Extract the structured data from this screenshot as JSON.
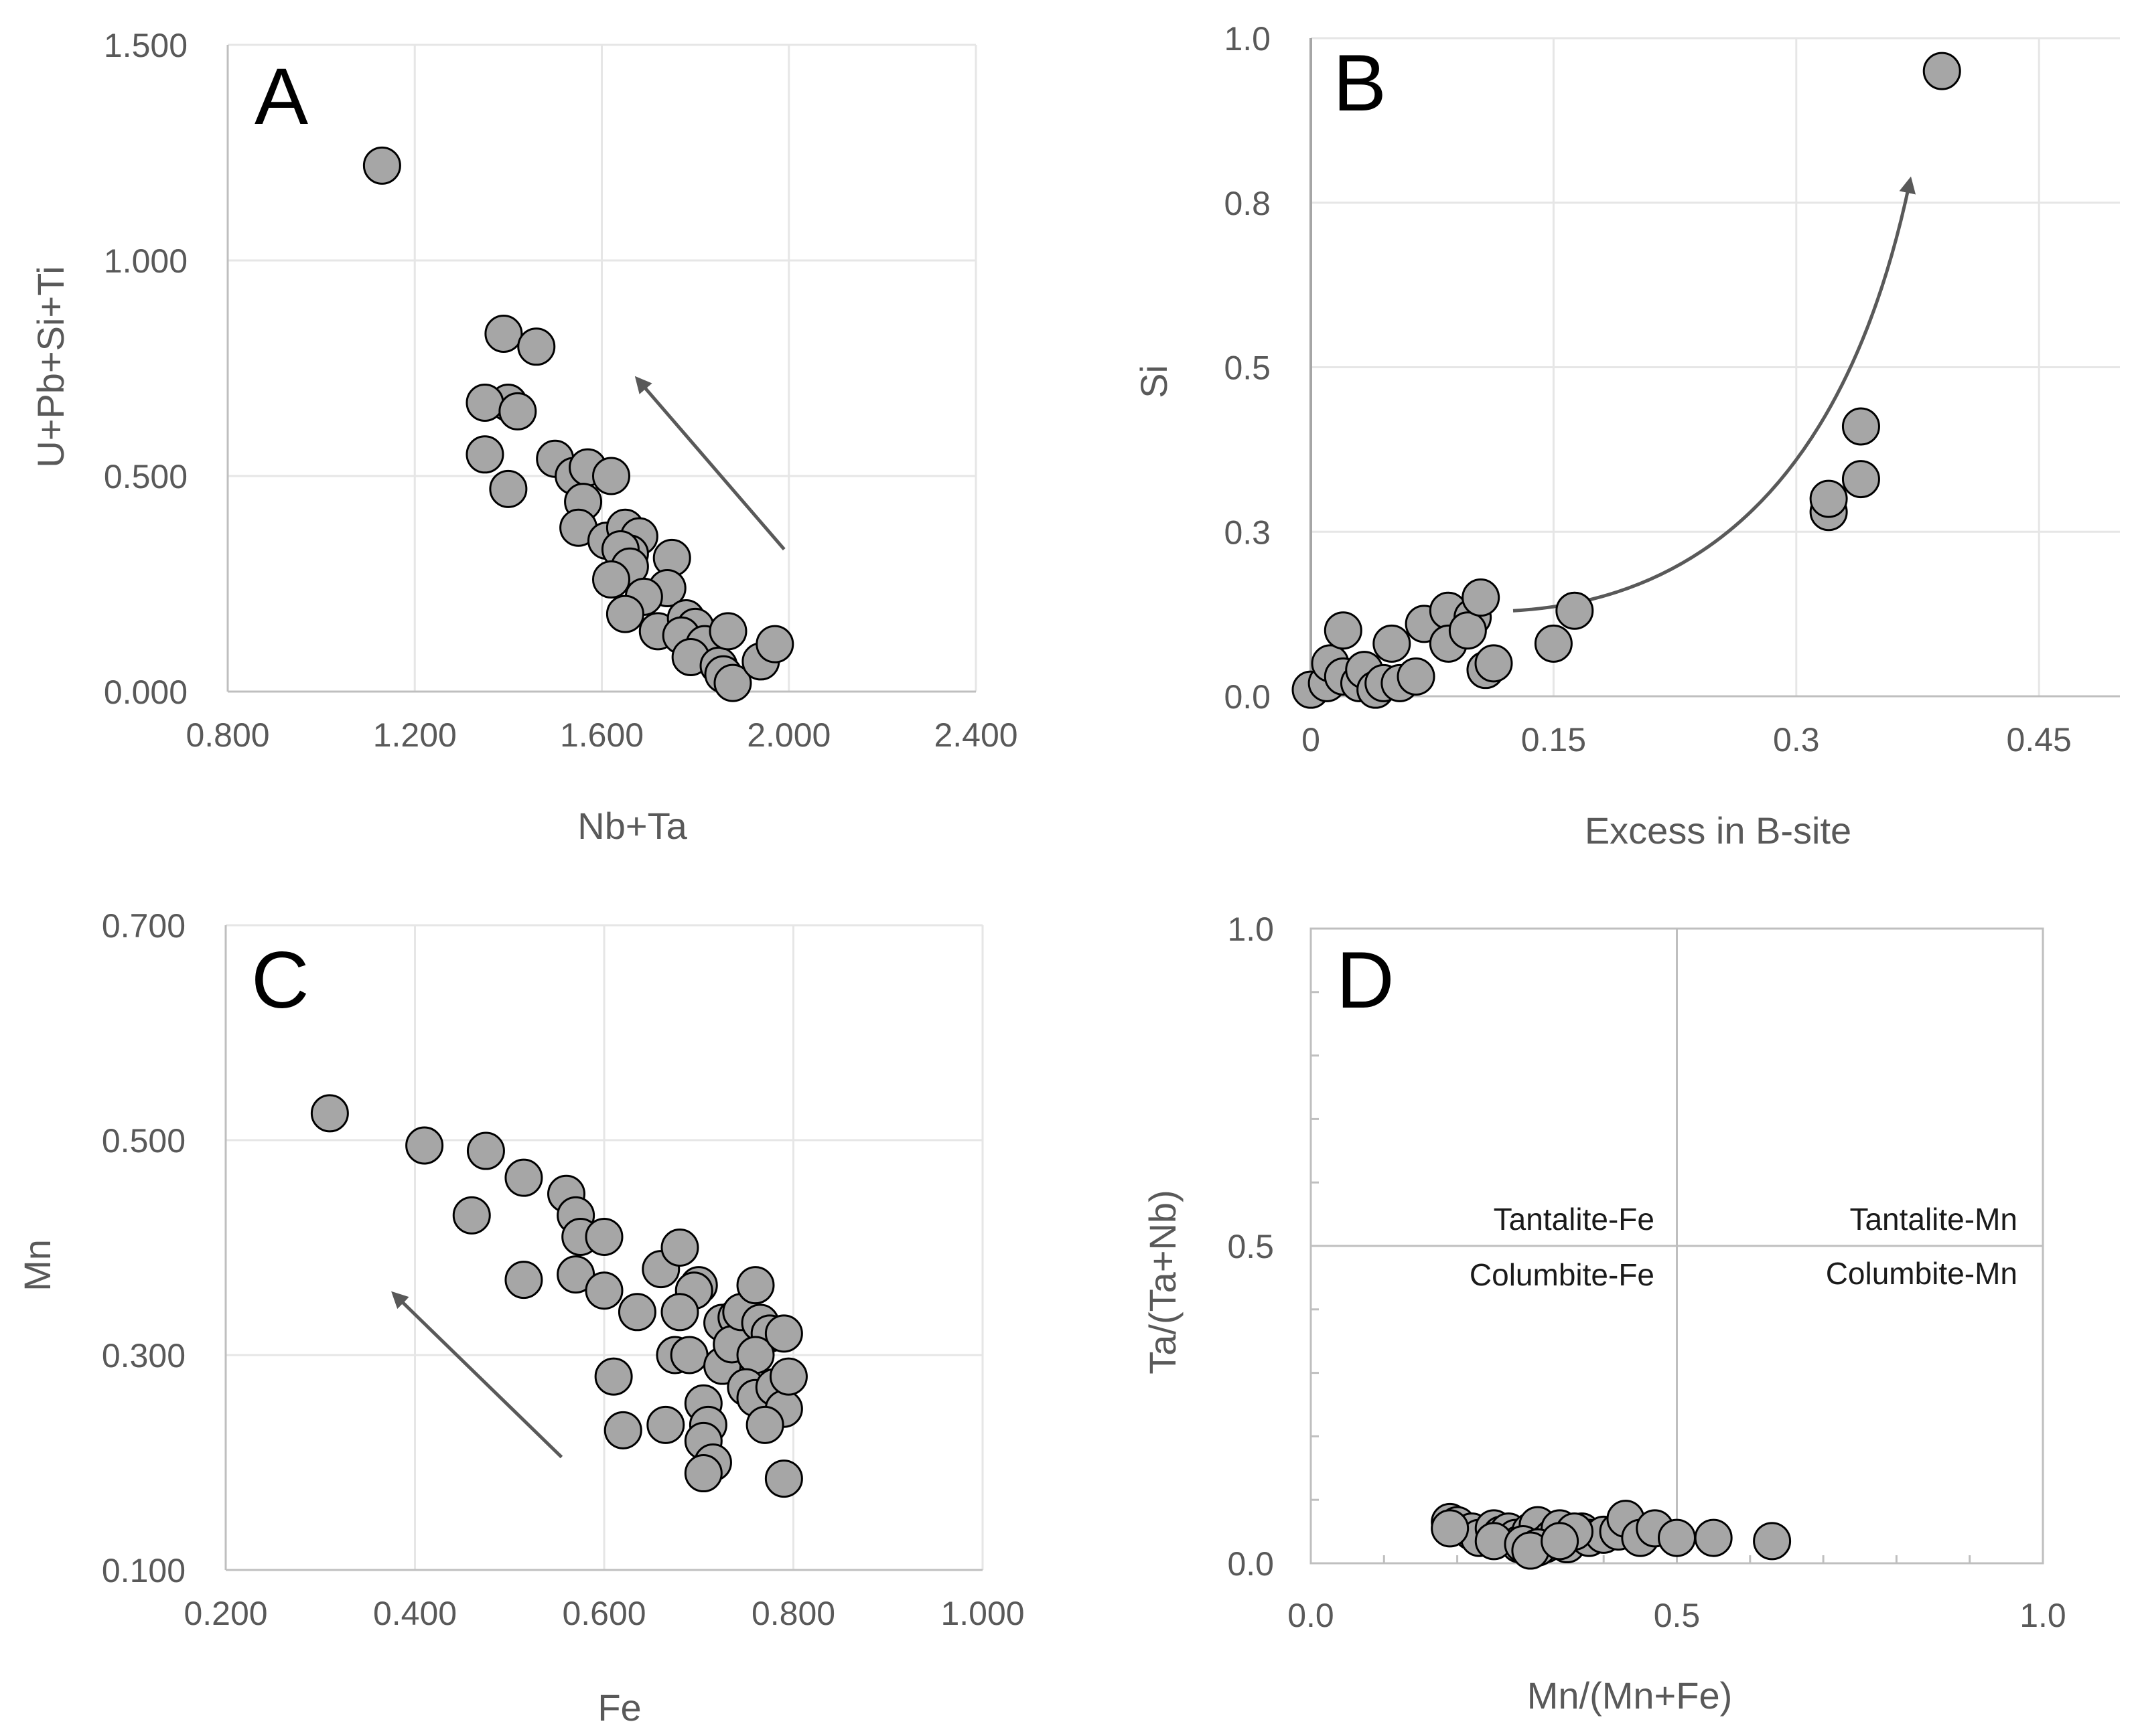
{
  "figure": {
    "colors": {
      "marker_fill": "#a6a6a6",
      "marker_edge": "#000000",
      "grid": "#e6e6e6",
      "axis": "#bfbfbf",
      "arrow": "#595959",
      "text": "#595959"
    }
  },
  "chart_data": [
    {
      "type": "scatter",
      "panel_label": "A",
      "xlabel": "Nb+Ta",
      "ylabel": "U+Pb+Si+Ti",
      "xlim": [
        0.8,
        2.4
      ],
      "ylim": [
        0.0,
        1.5
      ],
      "xticks": [
        0.8,
        1.2,
        1.6,
        2.0,
        2.4
      ],
      "yticks": [
        0.0,
        0.5,
        1.0,
        1.5
      ],
      "xtick_labels": [
        "0.800",
        "1.200",
        "1.600",
        "2.000",
        "2.400"
      ],
      "ytick_labels": [
        "0.000",
        "0.500",
        "1.000",
        "1.500"
      ],
      "grid": true,
      "arrow": {
        "from": [
          1.99,
          0.33
        ],
        "to": [
          1.68,
          0.72
        ]
      },
      "points": [
        [
          1.13,
          1.22
        ],
        [
          1.39,
          0.83
        ],
        [
          1.46,
          0.8
        ],
        [
          1.4,
          0.67
        ],
        [
          1.35,
          0.67
        ],
        [
          1.42,
          0.65
        ],
        [
          1.35,
          0.55
        ],
        [
          1.4,
          0.47
        ],
        [
          1.5,
          0.54
        ],
        [
          1.54,
          0.5
        ],
        [
          1.57,
          0.52
        ],
        [
          1.62,
          0.5
        ],
        [
          1.56,
          0.44
        ],
        [
          1.55,
          0.38
        ],
        [
          1.61,
          0.35
        ],
        [
          1.65,
          0.38
        ],
        [
          1.68,
          0.36
        ],
        [
          1.66,
          0.32
        ],
        [
          1.64,
          0.33
        ],
        [
          1.66,
          0.29
        ],
        [
          1.62,
          0.26
        ],
        [
          1.75,
          0.31
        ],
        [
          1.74,
          0.24
        ],
        [
          1.69,
          0.22
        ],
        [
          1.65,
          0.18
        ],
        [
          1.72,
          0.14
        ],
        [
          1.78,
          0.17
        ],
        [
          1.8,
          0.15
        ],
        [
          1.77,
          0.13
        ],
        [
          1.82,
          0.11
        ],
        [
          1.79,
          0.08
        ],
        [
          1.85,
          0.06
        ],
        [
          1.87,
          0.14
        ],
        [
          1.86,
          0.04
        ],
        [
          1.88,
          0.02
        ],
        [
          1.94,
          0.07
        ],
        [
          1.97,
          0.11
        ]
      ]
    },
    {
      "type": "scatter",
      "panel_label": "B",
      "xlabel": "Excess in B-site",
      "ylabel": "Si",
      "xlim": [
        0.0,
        0.5
      ],
      "ylim": [
        0.0,
        1.0
      ],
      "xticks": [
        0,
        0.15,
        0.3,
        0.45
      ],
      "yticks": [
        0.0,
        0.25,
        0.5,
        0.75,
        1.0
      ],
      "xtick_labels": [
        "0",
        "0.15",
        "0.3",
        "0.45"
      ],
      "ytick_labels": [
        "0.0",
        "0.3",
        "0.5",
        "0.8",
        "1.0"
      ],
      "grid": true,
      "arrow": {
        "from": [
          0.125,
          0.13
        ],
        "to": [
          0.37,
          0.78
        ],
        "curved": true
      },
      "points": [
        [
          0.0,
          0.01
        ],
        [
          0.01,
          0.02
        ],
        [
          0.012,
          0.05
        ],
        [
          0.02,
          0.03
        ],
        [
          0.02,
          0.1
        ],
        [
          0.03,
          0.02
        ],
        [
          0.033,
          0.04
        ],
        [
          0.04,
          0.01
        ],
        [
          0.045,
          0.02
        ],
        [
          0.05,
          0.08
        ],
        [
          0.055,
          0.02
        ],
        [
          0.065,
          0.03
        ],
        [
          0.07,
          0.11
        ],
        [
          0.085,
          0.13
        ],
        [
          0.085,
          0.08
        ],
        [
          0.1,
          0.12
        ],
        [
          0.097,
          0.1
        ],
        [
          0.105,
          0.15
        ],
        [
          0.108,
          0.04
        ],
        [
          0.113,
          0.05
        ],
        [
          0.15,
          0.08
        ],
        [
          0.163,
          0.13
        ],
        [
          0.32,
          0.28
        ],
        [
          0.32,
          0.3
        ],
        [
          0.34,
          0.33
        ],
        [
          0.34,
          0.41
        ],
        [
          0.39,
          0.95
        ]
      ]
    },
    {
      "type": "scatter",
      "panel_label": "C",
      "xlabel": "Fe",
      "ylabel": "Mn",
      "xlim": [
        0.2,
        1.0
      ],
      "ylim": [
        0.1,
        0.7
      ],
      "xticks": [
        0.2,
        0.4,
        0.6,
        0.8,
        1.0
      ],
      "yticks": [
        0.1,
        0.3,
        0.5,
        0.7
      ],
      "xtick_labels": [
        "0.200",
        "0.400",
        "0.600",
        "0.800",
        "1.000"
      ],
      "ytick_labels": [
        "0.100",
        "0.300",
        "0.500",
        "0.700"
      ],
      "grid": true,
      "arrow": {
        "from": [
          0.555,
          0.205
        ],
        "to": [
          0.38,
          0.355
        ]
      },
      "points": [
        [
          0.31,
          0.525
        ],
        [
          0.41,
          0.495
        ],
        [
          0.475,
          0.49
        ],
        [
          0.46,
          0.43
        ],
        [
          0.515,
          0.465
        ],
        [
          0.56,
          0.45
        ],
        [
          0.57,
          0.43
        ],
        [
          0.575,
          0.41
        ],
        [
          0.6,
          0.41
        ],
        [
          0.57,
          0.375
        ],
        [
          0.515,
          0.37
        ],
        [
          0.6,
          0.36
        ],
        [
          0.635,
          0.34
        ],
        [
          0.66,
          0.38
        ],
        [
          0.68,
          0.4
        ],
        [
          0.7,
          0.365
        ],
        [
          0.695,
          0.36
        ],
        [
          0.68,
          0.34
        ],
        [
          0.675,
          0.3
        ],
        [
          0.69,
          0.3
        ],
        [
          0.61,
          0.28
        ],
        [
          0.62,
          0.23
        ],
        [
          0.665,
          0.235
        ],
        [
          0.705,
          0.255
        ],
        [
          0.71,
          0.235
        ],
        [
          0.705,
          0.22
        ],
        [
          0.715,
          0.2
        ],
        [
          0.705,
          0.19
        ],
        [
          0.725,
          0.29
        ],
        [
          0.725,
          0.33
        ],
        [
          0.74,
          0.335
        ],
        [
          0.735,
          0.31
        ],
        [
          0.745,
          0.34
        ],
        [
          0.76,
          0.365
        ],
        [
          0.765,
          0.33
        ],
        [
          0.775,
          0.32
        ],
        [
          0.76,
          0.3
        ],
        [
          0.79,
          0.32
        ],
        [
          0.75,
          0.27
        ],
        [
          0.76,
          0.26
        ],
        [
          0.78,
          0.27
        ],
        [
          0.79,
          0.25
        ],
        [
          0.795,
          0.28
        ],
        [
          0.77,
          0.235
        ],
        [
          0.79,
          0.185
        ]
      ]
    },
    {
      "type": "scatter",
      "panel_label": "D",
      "xlabel": "Mn/(Mn+Fe)",
      "ylabel": "Ta/(Ta+Nb)",
      "xlim": [
        0.0,
        1.0
      ],
      "ylim": [
        0.0,
        1.0
      ],
      "xticks": [
        0.0,
        0.5,
        1.0
      ],
      "yticks": [
        0.0,
        0.5,
        1.0
      ],
      "xtick_labels": [
        "0.0",
        "0.5",
        "1.0"
      ],
      "ytick_labels": [
        "0.0",
        "0.5",
        "1.0"
      ],
      "grid": false,
      "divider": {
        "x": 0.5,
        "y": 0.5
      },
      "regions": {
        "top_left": "Tantalite-Fe",
        "bottom_left": "Columbite-Fe",
        "top_right": "Tantalite-Mn",
        "bottom_right": "Columbite-Mn"
      },
      "points": [
        [
          0.19,
          0.065
        ],
        [
          0.2,
          0.06
        ],
        [
          0.22,
          0.05
        ],
        [
          0.23,
          0.04
        ],
        [
          0.25,
          0.055
        ],
        [
          0.26,
          0.045
        ],
        [
          0.27,
          0.05
        ],
        [
          0.28,
          0.04
        ],
        [
          0.285,
          0.03
        ],
        [
          0.3,
          0.05
        ],
        [
          0.31,
          0.06
        ],
        [
          0.32,
          0.03
        ],
        [
          0.33,
          0.04
        ],
        [
          0.34,
          0.055
        ],
        [
          0.35,
          0.03
        ],
        [
          0.37,
          0.05
        ],
        [
          0.38,
          0.04
        ],
        [
          0.4,
          0.045
        ],
        [
          0.42,
          0.05
        ],
        [
          0.43,
          0.07
        ],
        [
          0.45,
          0.04
        ],
        [
          0.47,
          0.055
        ],
        [
          0.5,
          0.04
        ],
        [
          0.55,
          0.04
        ],
        [
          0.63,
          0.035
        ],
        [
          0.25,
          0.035
        ],
        [
          0.29,
          0.03
        ],
        [
          0.31,
          0.025
        ],
        [
          0.36,
          0.05
        ],
        [
          0.19,
          0.055
        ],
        [
          0.3,
          0.02
        ],
        [
          0.34,
          0.035
        ]
      ]
    }
  ]
}
